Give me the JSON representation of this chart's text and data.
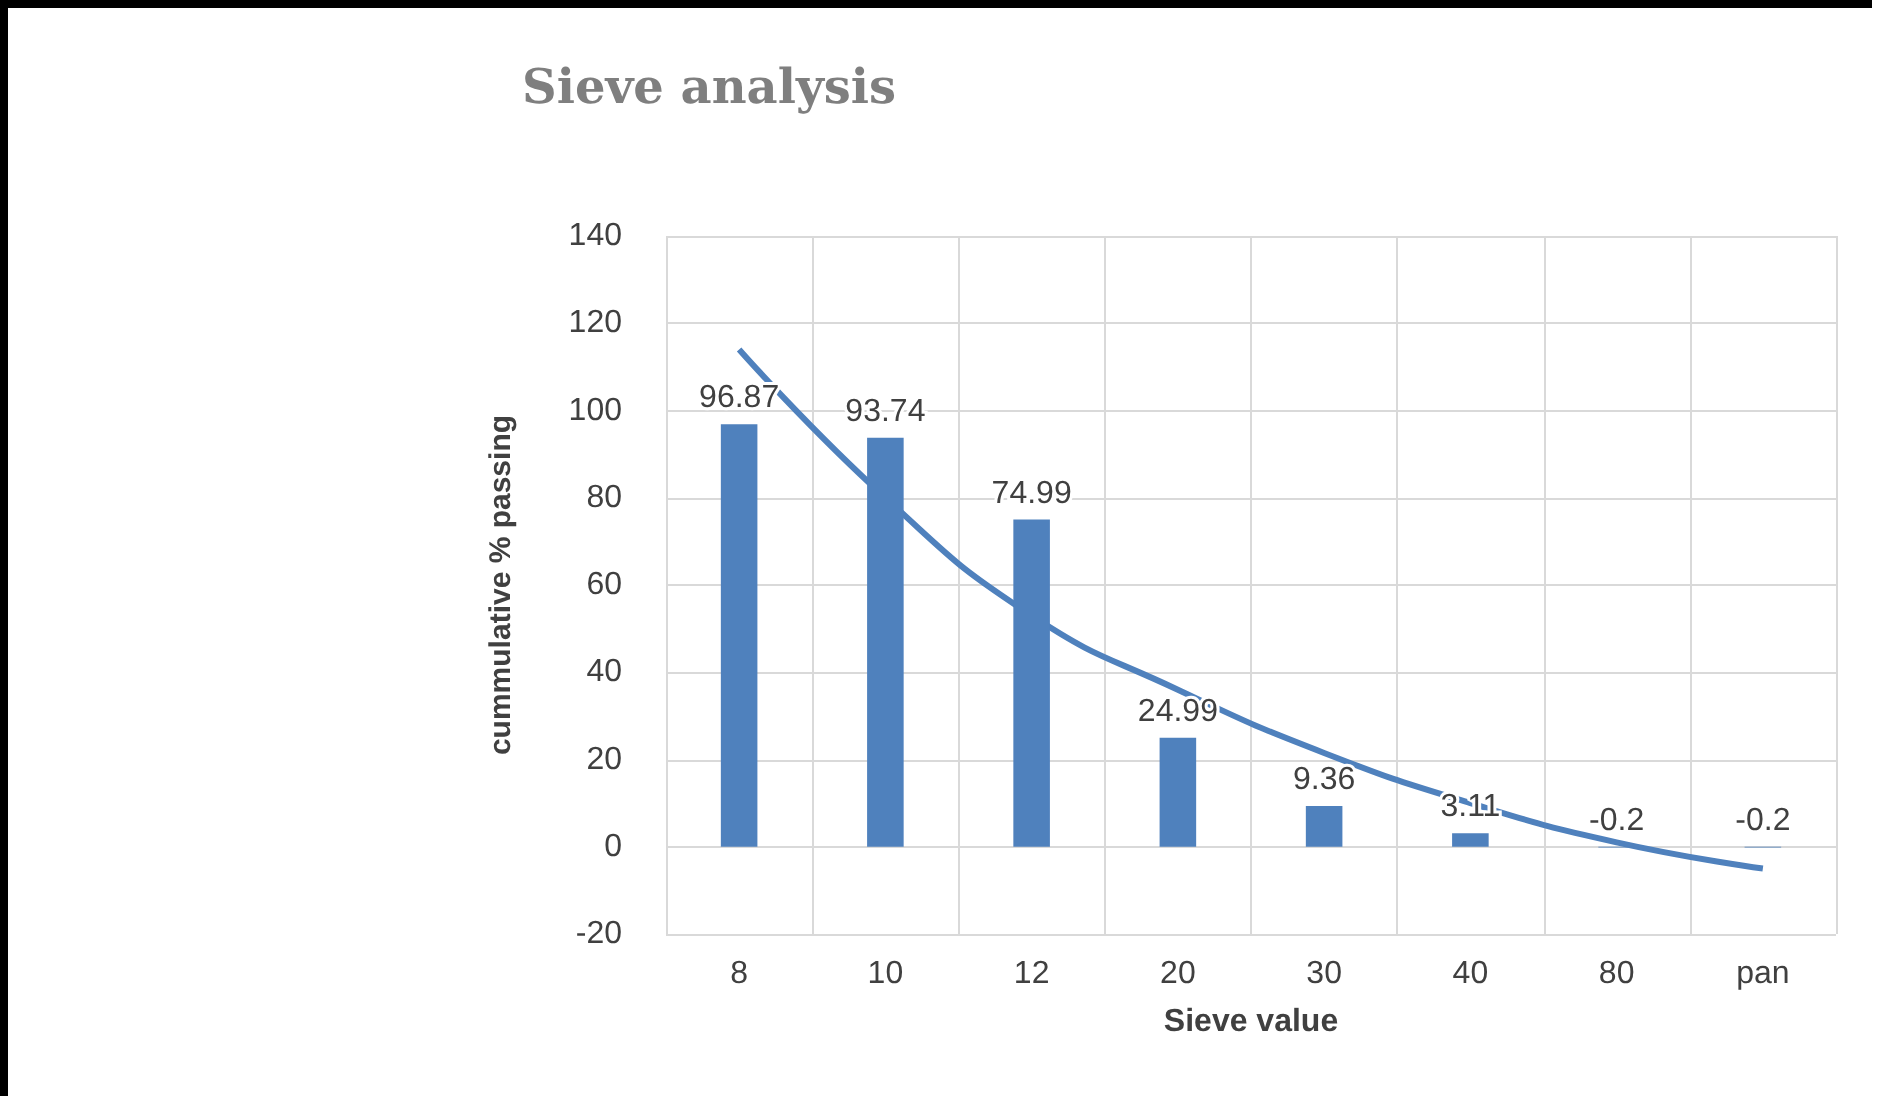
{
  "chart_data": {
    "type": "bar",
    "title": "Sieve analysis",
    "xlabel": "Sieve value",
    "ylabel": "cummulative % passing",
    "categories": [
      "8",
      "10",
      "12",
      "20",
      "30",
      "40",
      "80",
      "pan"
    ],
    "series": [
      {
        "color": "#4f81bd",
        "values": [
          96.87,
          93.74,
          74.99,
          24.99,
          9.36,
          3.11,
          -0.2,
          -0.2
        ],
        "value_labels": [
          "96.87",
          "93.74",
          "74.99",
          "24.99",
          "9.36",
          "3.11",
          "-0.2",
          "-0.2"
        ]
      },
      {
        "type": "line",
        "color": "#4f81bd",
        "values": [
          114,
          80,
          53,
          36,
          21.5,
          10,
          1,
          -5
        ]
      }
    ],
    "ylim": [
      -20,
      140
    ],
    "yticks": [
      -20,
      0,
      20,
      40,
      60,
      80,
      100,
      120,
      140
    ],
    "grid": true,
    "marker": "none",
    "line_style": "solid"
  }
}
